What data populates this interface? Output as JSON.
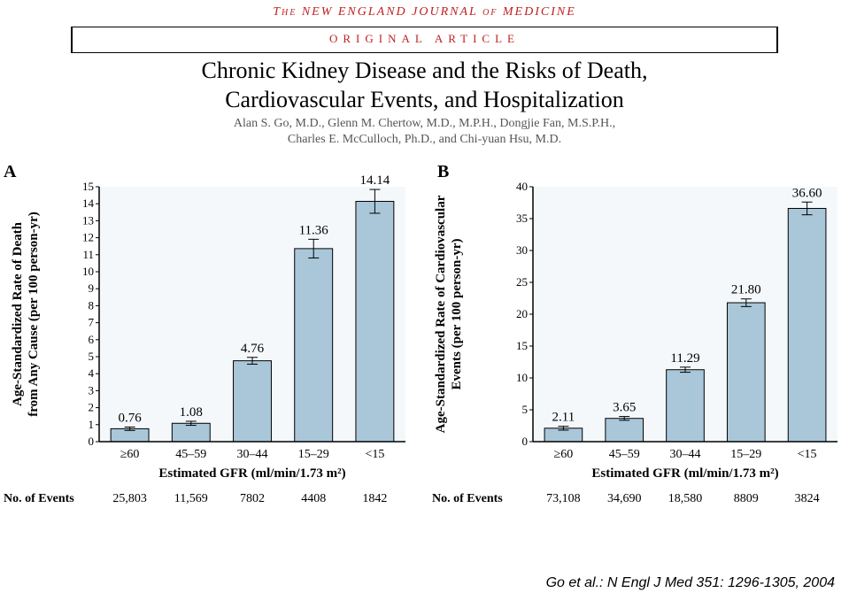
{
  "header": {
    "journal": "The NEW ENGLAND JOURNAL of MEDICINE",
    "original": "ORIGINAL ARTICLE",
    "title_l1": "Chronic Kidney Disease and the Risks of Death,",
    "title_l2": "Cardiovascular Events, and Hospitalization",
    "authors_l1": "Alan S. Go, M.D., Glenn M. Chertow, M.D., M.P.H., Dongjie Fan, M.S.P.H.,",
    "authors_l2": "Charles E. McCulloch, Ph.D., and Chi-yuan Hsu, M.D."
  },
  "panelA": {
    "panel_label": "A",
    "ylabel_l1": "Age-Standardized Rate of Death",
    "ylabel_l2": "from Any Cause (per 100 person-yr)",
    "xlabel": "Estimated GFR (ml/min/1.73 m²)",
    "events_label": "No. of Events",
    "ylim": [
      0,
      15
    ],
    "ytick_step": 1,
    "categories": [
      "≥60",
      "45–59",
      "30–44",
      "15–29",
      "<15"
    ],
    "values": [
      0.76,
      1.08,
      4.76,
      11.36,
      14.14
    ],
    "errors": [
      0.1,
      0.12,
      0.2,
      0.55,
      0.7
    ],
    "value_labels": [
      "0.76",
      "1.08",
      "4.76",
      "11.36",
      "14.14"
    ],
    "events": [
      "25,803",
      "11,569",
      "7802",
      "4408",
      "1842"
    ],
    "bar_color": "#a9c7d8",
    "bar_width": 0.62,
    "background": "#f4f8fb"
  },
  "panelB": {
    "panel_label": "B",
    "ylabel_l1": "Age-Standardized Rate of Cardiovascular",
    "ylabel_l2": "Events (per 100 person-yr)",
    "xlabel": "Estimated GFR (ml/min/1.73 m²)",
    "events_label": "No. of Events",
    "ylim": [
      0,
      40
    ],
    "ytick_step": 5,
    "categories": [
      "≥60",
      "45–59",
      "30–44",
      "15–29",
      "<15"
    ],
    "values": [
      2.11,
      3.65,
      11.29,
      21.8,
      36.6
    ],
    "errors": [
      0.3,
      0.3,
      0.4,
      0.6,
      1.0
    ],
    "value_labels": [
      "2.11",
      "3.65",
      "11.29",
      "21.80",
      "36.60"
    ],
    "events": [
      "73,108",
      "34,690",
      "18,580",
      "8809",
      "3824"
    ],
    "bar_color": "#a9c7d8",
    "bar_width": 0.62,
    "background": "#f4f8fb"
  },
  "citation": "Go et al.: N Engl J Med 351: 1296-1305, 2004"
}
